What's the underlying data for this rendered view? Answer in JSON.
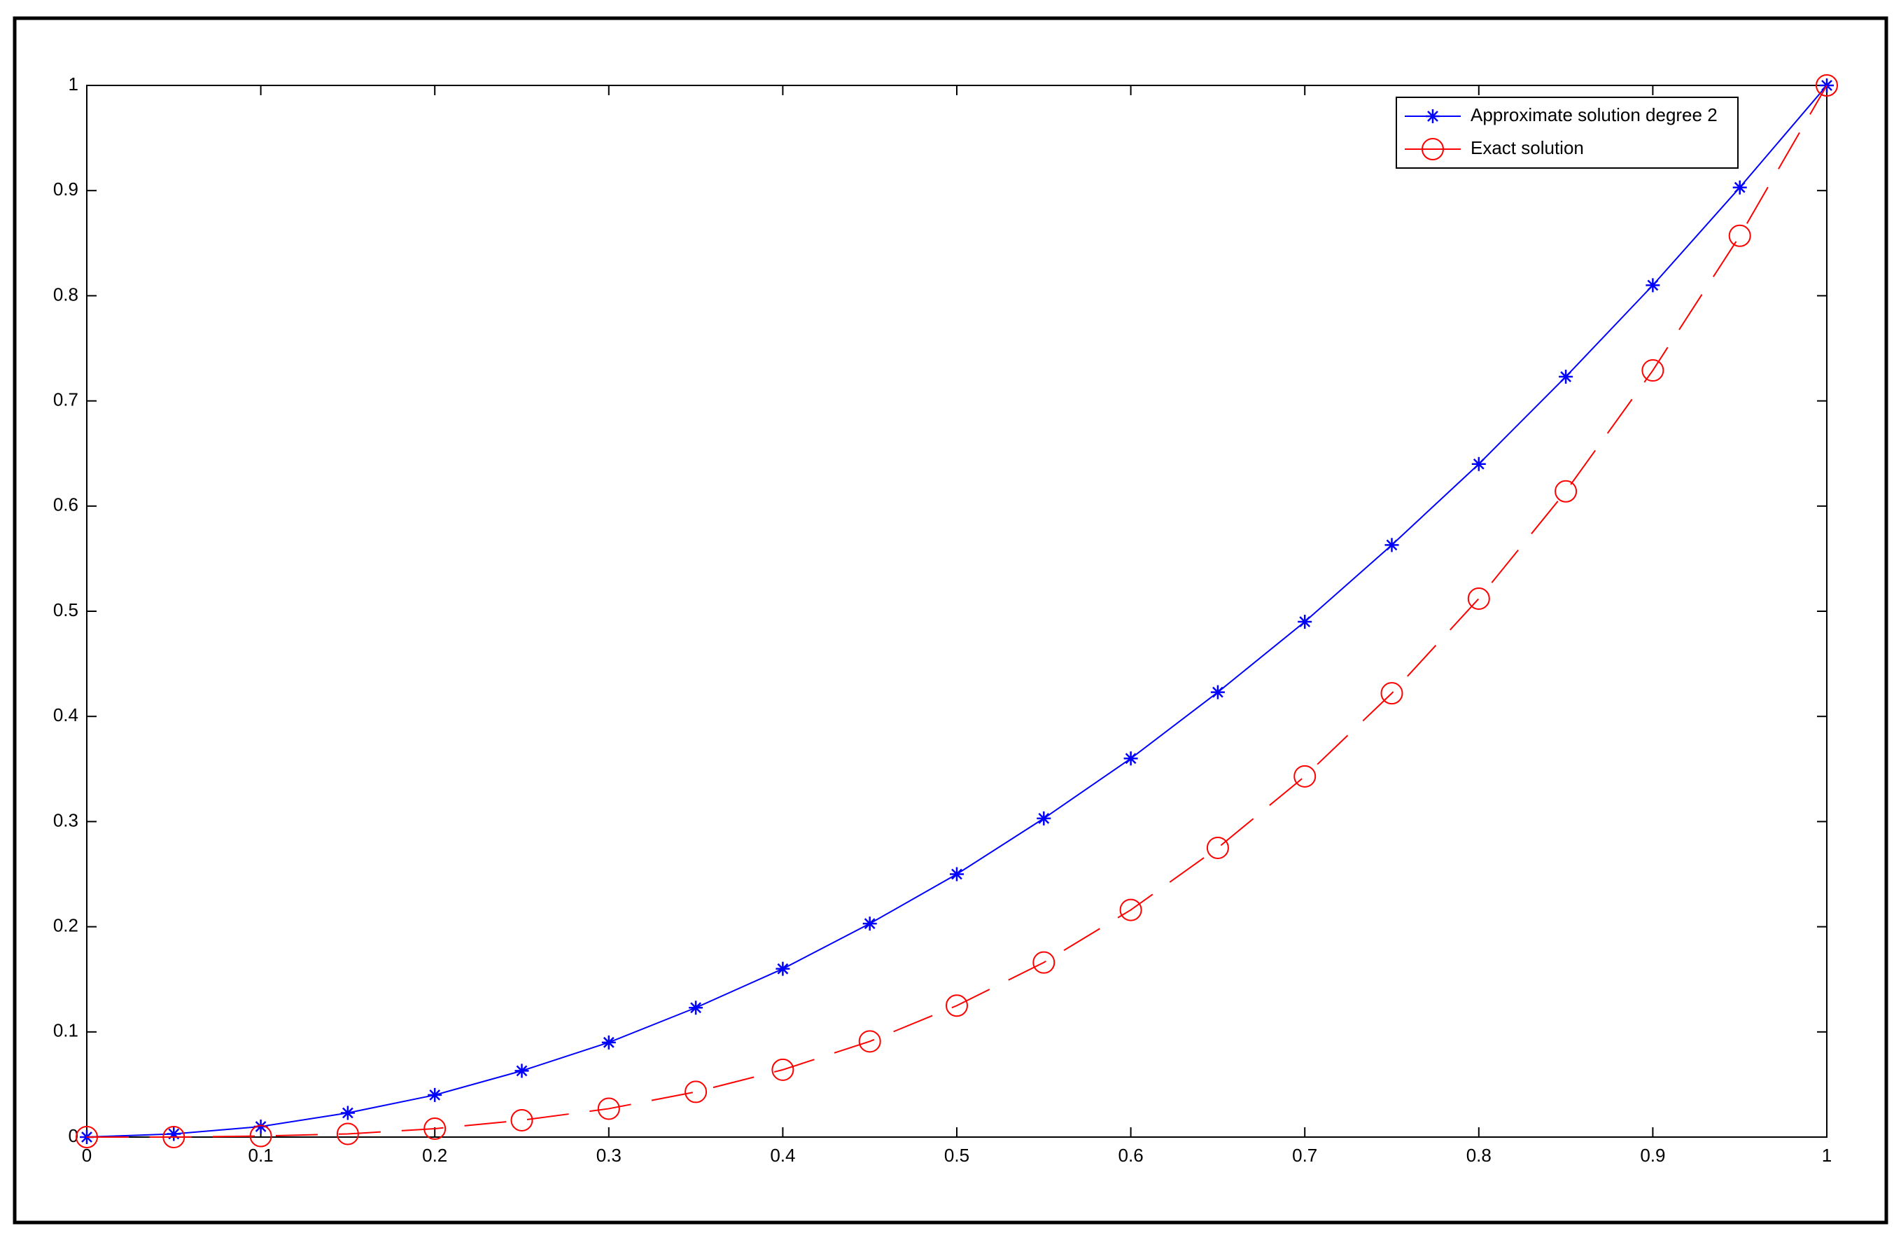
{
  "chart_data": {
    "type": "line",
    "x": [
      0,
      0.05,
      0.1,
      0.15,
      0.2,
      0.25,
      0.3,
      0.35,
      0.4,
      0.45,
      0.5,
      0.55,
      0.6,
      0.65,
      0.7,
      0.75,
      0.8,
      0.85,
      0.9,
      0.95,
      1
    ],
    "series": [
      {
        "name": "Approximate solution degree 2",
        "color": "#0000ff",
        "marker": "asterisk",
        "dash": false,
        "values": [
          0,
          0.003,
          0.01,
          0.023,
          0.04,
          0.063,
          0.09,
          0.123,
          0.16,
          0.203,
          0.25,
          0.303,
          0.36,
          0.423,
          0.49,
          0.563,
          0.64,
          0.723,
          0.81,
          0.903,
          1
        ]
      },
      {
        "name": "Exact solution",
        "color": "#ff0000",
        "marker": "circle",
        "dash": true,
        "values": [
          0,
          0,
          0.001,
          0.003,
          0.008,
          0.016,
          0.027,
          0.043,
          0.064,
          0.091,
          0.125,
          0.166,
          0.216,
          0.275,
          0.343,
          0.422,
          0.512,
          0.614,
          0.729,
          0.857,
          1
        ]
      }
    ],
    "xlim": [
      0,
      1
    ],
    "ylim": [
      0,
      1
    ],
    "xticks": [
      0,
      0.1,
      0.2,
      0.3,
      0.4,
      0.5,
      0.6,
      0.7,
      0.8,
      0.9,
      1
    ],
    "yticks": [
      0,
      0.1,
      0.2,
      0.3,
      0.4,
      0.5,
      0.6,
      0.7,
      0.8,
      0.9,
      1
    ],
    "grid": false,
    "legend": "top-right"
  }
}
